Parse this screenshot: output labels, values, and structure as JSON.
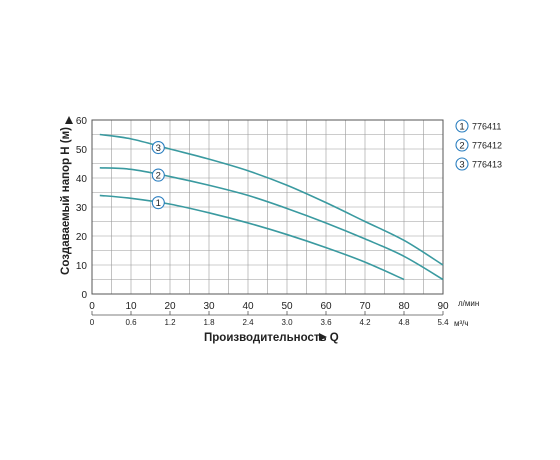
{
  "chart_data": {
    "type": "line",
    "ylabel": "Создаваемый напор H (м)",
    "xlabel": "Производительность Q",
    "x_unit_primary": "л/мин",
    "x_unit_secondary": "м³/ч",
    "xlim": [
      0,
      90
    ],
    "ylim": [
      0,
      60
    ],
    "x_ticks": [
      "0",
      "10",
      "20",
      "30",
      "40",
      "50",
      "60",
      "70",
      "80",
      "90"
    ],
    "x_ticks_secondary": [
      "0",
      "0.6",
      "1.2",
      "1.8",
      "2.4",
      "3.0",
      "3.6",
      "4.2",
      "4.8",
      "5.4"
    ],
    "y_ticks": [
      "0",
      "10",
      "20",
      "30",
      "40",
      "50",
      "60"
    ],
    "grid": true,
    "curve_color": "#3a9aa0",
    "marker_color": "#2b7fc0",
    "series": [
      {
        "name": "776411",
        "marker": "1",
        "x": [
          2,
          10,
          20,
          30,
          40,
          50,
          60,
          70,
          80
        ],
        "y": [
          34,
          33,
          31,
          28,
          24.5,
          20.5,
          16,
          11,
          5
        ]
      },
      {
        "name": "776412",
        "marker": "2",
        "x": [
          2,
          10,
          20,
          30,
          40,
          50,
          60,
          70,
          80,
          90
        ],
        "y": [
          43.5,
          43,
          40.5,
          37.5,
          34,
          29.5,
          24.5,
          19,
          13,
          5
        ]
      },
      {
        "name": "776413",
        "marker": "3",
        "x": [
          2,
          10,
          20,
          30,
          40,
          50,
          60,
          70,
          80,
          90
        ],
        "y": [
          55,
          53.5,
          50,
          46.5,
          42.5,
          37.5,
          31.5,
          25,
          18.5,
          10
        ]
      }
    ],
    "curve_markers": [
      {
        "label": "3",
        "x": 17,
        "y": 50.5
      },
      {
        "label": "2",
        "x": 17,
        "y": 41
      },
      {
        "label": "1",
        "x": 17,
        "y": 31.5
      }
    ],
    "legend_position": "right"
  }
}
